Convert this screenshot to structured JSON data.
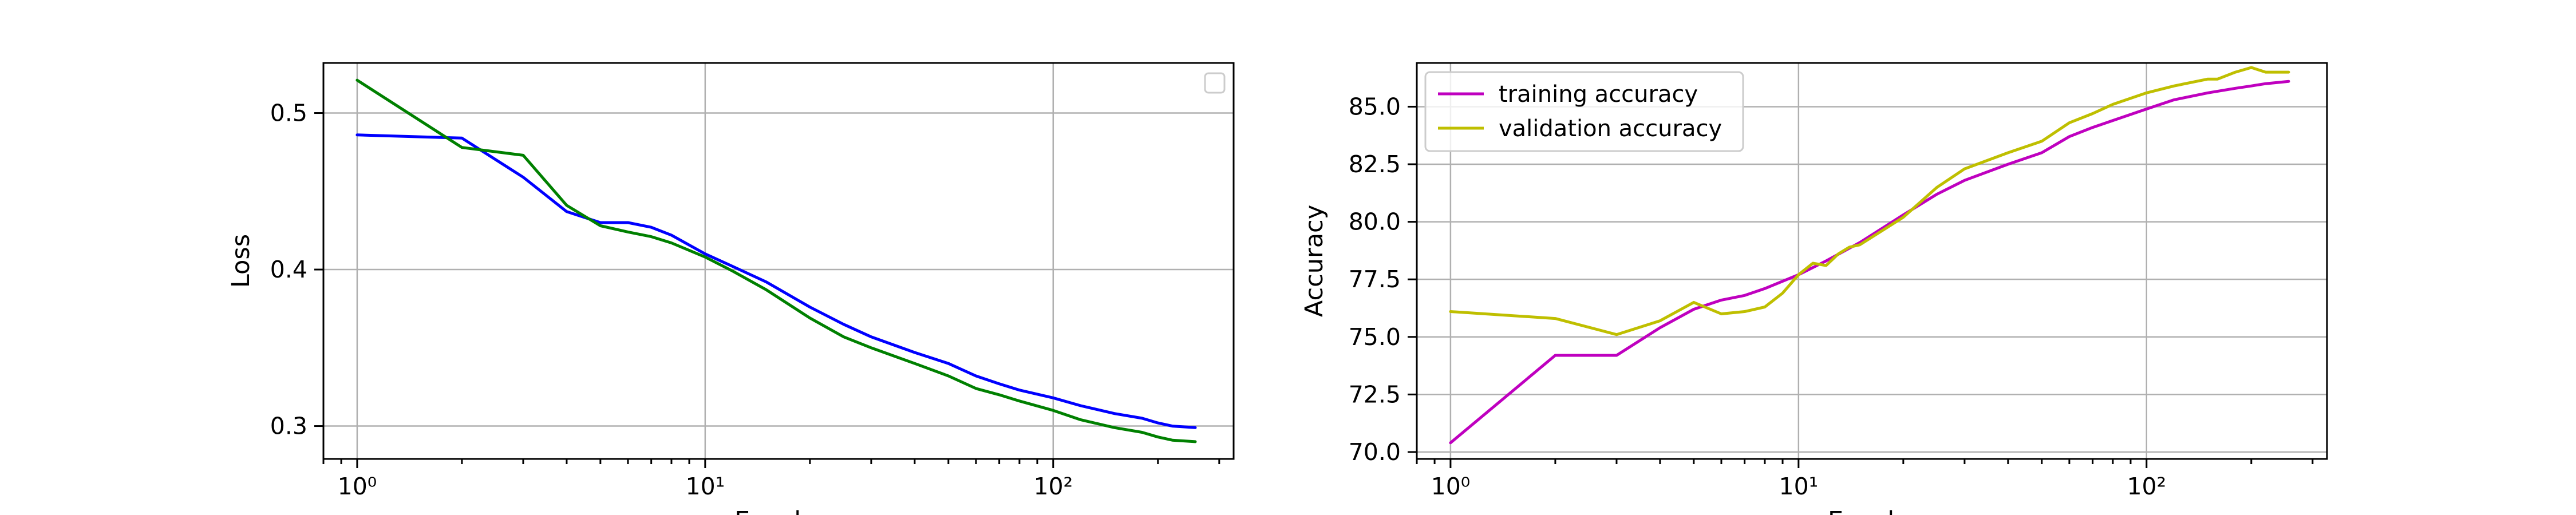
{
  "chart_data": [
    {
      "type": "line",
      "xscale": "log",
      "xlim": [
        0.8,
        330
      ],
      "ylim": [
        0.279,
        0.532
      ],
      "xlabel": "Epochs",
      "ylabel": "Loss",
      "grid": true,
      "legend": {
        "placement": "top-right",
        "entries": []
      },
      "xticks": [
        {
          "value": 1,
          "label": "10⁰"
        },
        {
          "value": 10,
          "label": "10¹"
        },
        {
          "value": 100,
          "label": "10²"
        }
      ],
      "yticks": [
        {
          "value": 0.3,
          "label": "0.3"
        },
        {
          "value": 0.4,
          "label": "0.4"
        },
        {
          "value": 0.5,
          "label": "0.5"
        }
      ],
      "series": [
        {
          "color": "#0000ff",
          "x": [
            1,
            2,
            3,
            4,
            5,
            6,
            7,
            8,
            10,
            12,
            15,
            20,
            25,
            30,
            40,
            50,
            60,
            70,
            80,
            100,
            120,
            150,
            180,
            200,
            220,
            256
          ],
          "y": [
            0.486,
            0.484,
            0.459,
            0.437,
            0.43,
            0.43,
            0.427,
            0.422,
            0.41,
            0.402,
            0.392,
            0.376,
            0.365,
            0.357,
            0.347,
            0.34,
            0.332,
            0.327,
            0.323,
            0.318,
            0.313,
            0.308,
            0.305,
            0.302,
            0.3,
            0.299
          ]
        },
        {
          "color": "#008000",
          "x": [
            1,
            2,
            3,
            4,
            5,
            6,
            7,
            8,
            10,
            12,
            15,
            20,
            25,
            30,
            40,
            50,
            60,
            70,
            80,
            100,
            120,
            150,
            180,
            200,
            220,
            256
          ],
          "y": [
            0.521,
            0.478,
            0.473,
            0.441,
            0.428,
            0.424,
            0.421,
            0.417,
            0.408,
            0.399,
            0.387,
            0.369,
            0.357,
            0.35,
            0.34,
            0.332,
            0.324,
            0.32,
            0.316,
            0.31,
            0.304,
            0.299,
            0.296,
            0.293,
            0.291,
            0.29
          ]
        }
      ]
    },
    {
      "type": "line",
      "xscale": "log",
      "xlim": [
        0.8,
        330
      ],
      "ylim": [
        69.7,
        86.9
      ],
      "xlabel": "Epochs",
      "ylabel": "Accuracy",
      "grid": true,
      "legend": {
        "placement": "top-left",
        "entries": [
          {
            "name": "training accuracy",
            "color": "#bf00bf"
          },
          {
            "name": "validation accuracy",
            "color": "#bfbf00"
          }
        ]
      },
      "xticks": [
        {
          "value": 1,
          "label": "10⁰"
        },
        {
          "value": 10,
          "label": "10¹"
        },
        {
          "value": 100,
          "label": "10²"
        }
      ],
      "yticks": [
        {
          "value": 70.0,
          "label": "70.0"
        },
        {
          "value": 72.5,
          "label": "72.5"
        },
        {
          "value": 75.0,
          "label": "75.0"
        },
        {
          "value": 77.5,
          "label": "77.5"
        },
        {
          "value": 80.0,
          "label": "80.0"
        },
        {
          "value": 82.5,
          "label": "82.5"
        },
        {
          "value": 85.0,
          "label": "85.0"
        }
      ],
      "series": [
        {
          "name": "training accuracy",
          "color": "#bf00bf",
          "x": [
            1,
            2,
            3,
            4,
            5,
            6,
            7,
            8,
            10,
            12,
            15,
            20,
            25,
            30,
            40,
            50,
            60,
            70,
            80,
            100,
            120,
            150,
            180,
            200,
            220,
            256
          ],
          "y": [
            70.4,
            74.2,
            74.2,
            75.4,
            76.2,
            76.6,
            76.8,
            77.1,
            77.7,
            78.3,
            79.1,
            80.3,
            81.2,
            81.8,
            82.5,
            83.0,
            83.7,
            84.1,
            84.4,
            84.9,
            85.3,
            85.6,
            85.8,
            85.9,
            86.0,
            86.1
          ]
        },
        {
          "name": "validation accuracy",
          "color": "#bfbf00",
          "x": [
            1,
            2,
            3,
            4,
            5,
            6,
            7,
            8,
            9,
            10,
            11,
            12,
            13,
            14,
            15,
            20,
            25,
            30,
            40,
            50,
            60,
            70,
            80,
            100,
            120,
            150,
            160,
            180,
            200,
            220,
            256
          ],
          "y": [
            76.1,
            75.8,
            75.1,
            75.7,
            76.5,
            76.0,
            76.1,
            76.3,
            76.9,
            77.7,
            78.2,
            78.1,
            78.6,
            78.9,
            79.0,
            80.2,
            81.5,
            82.3,
            83.0,
            83.5,
            84.3,
            84.7,
            85.1,
            85.6,
            85.9,
            86.2,
            86.2,
            86.5,
            86.7,
            86.5,
            86.5
          ]
        }
      ]
    }
  ]
}
